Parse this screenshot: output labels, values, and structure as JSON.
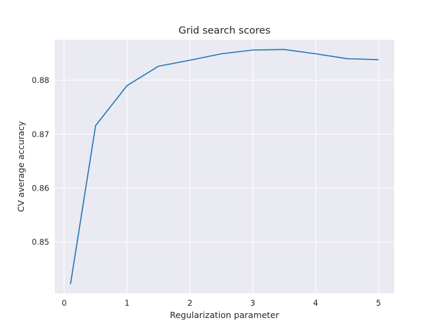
{
  "chart_data": {
    "type": "line",
    "title": "Grid search scores",
    "xlabel": "Regularization parameter",
    "ylabel": "CV average accuracy",
    "xlim": [
      -0.15,
      5.25
    ],
    "ylim": [
      0.8405,
      0.8875
    ],
    "grid": true,
    "background": "#eaeaf2",
    "grid_color": "#ffffff",
    "line_color": "#1f77b4",
    "x_ticks": [
      0,
      1,
      2,
      3,
      4,
      5
    ],
    "x_tick_labels": [
      "0",
      "1",
      "2",
      "3",
      "4",
      "5"
    ],
    "y_ticks": [
      0.85,
      0.86,
      0.87,
      0.88
    ],
    "y_tick_labels": [
      "0.85",
      "0.86",
      "0.87",
      "0.88"
    ],
    "series": [
      {
        "x": [
          0.1,
          0.5,
          1.0,
          1.5,
          2.0,
          2.5,
          3.0,
          3.5,
          4.0,
          4.5,
          5.0
        ],
        "y": [
          0.8422,
          0.8716,
          0.879,
          0.8826,
          0.8837,
          0.8849,
          0.8856,
          0.8857,
          0.8849,
          0.884,
          0.8838
        ]
      }
    ]
  }
}
